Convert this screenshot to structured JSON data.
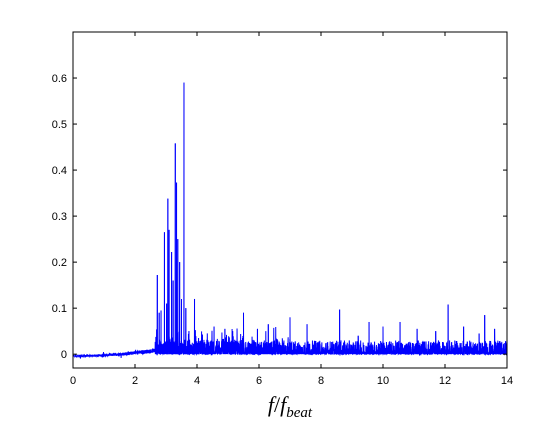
{
  "chart_data": {
    "type": "line",
    "title": "",
    "xlabel": {
      "main": "f",
      "sep": "/",
      "sym": "f",
      "sub": "beat"
    },
    "ylabel": "",
    "xlim": [
      0,
      14
    ],
    "ylim": [
      -0.03,
      0.7
    ],
    "xticks": [
      0,
      2,
      4,
      6,
      8,
      10,
      12,
      14
    ],
    "yticks": [
      0,
      0.1,
      0.2,
      0.3,
      0.4,
      0.5,
      0.6
    ],
    "xtick_labels": [
      "0",
      "2",
      "4",
      "6",
      "8",
      "10",
      "12",
      "14"
    ],
    "ytick_labels": [
      "0",
      "0.1",
      "0.2",
      "0.3",
      "0.4",
      "0.5",
      "0.6"
    ],
    "grid": false,
    "line_color": "#0000ff",
    "baseline": {
      "x_start": 0,
      "x_end": 2.65,
      "start_level": -0.004,
      "end_level": 0.008
    },
    "noise_level": 0.01,
    "peaks": [
      {
        "x": 2.72,
        "y": 0.172
      },
      {
        "x": 2.78,
        "y": 0.09
      },
      {
        "x": 2.84,
        "y": 0.095
      },
      {
        "x": 2.95,
        "y": 0.265
      },
      {
        "x": 3.02,
        "y": 0.11
      },
      {
        "x": 3.06,
        "y": 0.338
      },
      {
        "x": 3.1,
        "y": 0.27
      },
      {
        "x": 3.18,
        "y": 0.222
      },
      {
        "x": 3.23,
        "y": 0.16
      },
      {
        "x": 3.3,
        "y": 0.458
      },
      {
        "x": 3.34,
        "y": 0.373
      },
      {
        "x": 3.38,
        "y": 0.25
      },
      {
        "x": 3.44,
        "y": 0.2
      },
      {
        "x": 3.5,
        "y": 0.12
      },
      {
        "x": 3.58,
        "y": 0.59
      },
      {
        "x": 3.64,
        "y": 0.1
      },
      {
        "x": 3.74,
        "y": 0.05
      },
      {
        "x": 3.92,
        "y": 0.12
      },
      {
        "x": 4.05,
        "y": 0.035
      },
      {
        "x": 4.35,
        "y": 0.03
      },
      {
        "x": 4.55,
        "y": 0.06
      },
      {
        "x": 4.9,
        "y": 0.055
      },
      {
        "x": 5.15,
        "y": 0.05
      },
      {
        "x": 5.5,
        "y": 0.09
      },
      {
        "x": 5.95,
        "y": 0.055
      },
      {
        "x": 6.3,
        "y": 0.065
      },
      {
        "x": 6.6,
        "y": 0.03
      },
      {
        "x": 7.0,
        "y": 0.08
      },
      {
        "x": 7.55,
        "y": 0.065
      },
      {
        "x": 8.6,
        "y": 0.097
      },
      {
        "x": 9.2,
        "y": 0.04
      },
      {
        "x": 9.55,
        "y": 0.07
      },
      {
        "x": 10.0,
        "y": 0.06
      },
      {
        "x": 10.55,
        "y": 0.07
      },
      {
        "x": 11.1,
        "y": 0.055
      },
      {
        "x": 11.7,
        "y": 0.05
      },
      {
        "x": 12.1,
        "y": 0.108
      },
      {
        "x": 12.6,
        "y": 0.06
      },
      {
        "x": 13.1,
        "y": 0.045
      },
      {
        "x": 13.28,
        "y": 0.085
      },
      {
        "x": 13.6,
        "y": 0.055
      }
    ],
    "series": [
      {
        "values_note": "",
        "color": "#0000ff"
      }
    ]
  }
}
